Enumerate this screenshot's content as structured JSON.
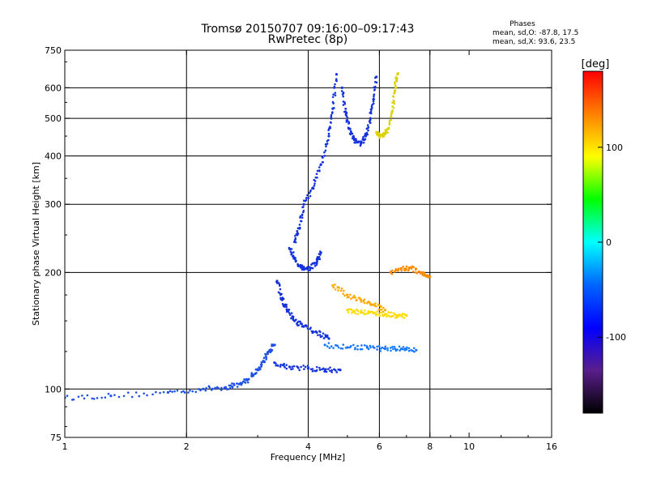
{
  "chart_data": {
    "type": "scatter",
    "title": "Tromsø 20150707 09:16:00–09:17:43",
    "subtitle": "RwPretec (8p)",
    "info": {
      "heading": "Phases",
      "line1": "mean, sd,O: -87.8, 17.5",
      "line2": "mean, sd,X:  93.6, 23.5"
    },
    "xlabel": "Frequency [MHz]",
    "ylabel": "Stationary phase Virtual Height [km]",
    "x_scale": "log",
    "y_scale": "log",
    "xlim": [
      1,
      16
    ],
    "ylim": [
      75,
      750
    ],
    "x_ticks": [
      1,
      2,
      4,
      6,
      8,
      10,
      16
    ],
    "x_tick_labels": [
      "1",
      "2",
      "4",
      "6",
      "8",
      "10",
      "16"
    ],
    "x_gridlines": [
      2,
      4,
      6,
      8
    ],
    "y_ticks": [
      75,
      100,
      200,
      300,
      400,
      500,
      600,
      750
    ],
    "y_tick_labels": [
      "75",
      "100",
      "200",
      "300",
      "400",
      "500",
      "600",
      "750"
    ],
    "y_gridlines": [
      100,
      200,
      300,
      400,
      500,
      600
    ],
    "grid": true,
    "colorbar": {
      "unit": "[deg]",
      "range": [
        -180,
        180
      ],
      "ticks": [
        100,
        0,
        -100
      ],
      "tick_labels": [
        "100",
        "0",
        "-100"
      ],
      "stops": [
        "#000000",
        "#5a1e8c",
        "#0000ff",
        "#0064ff",
        "#00ffff",
        "#00ff00",
        "#ffff00",
        "#ff8000",
        "#ff0000"
      ]
    },
    "series": [
      {
        "name": "",
        "color": "#1e50e6",
        "f": [
          1.0,
          1.3,
          1.8,
          2.2,
          2.5,
          2.7,
          2.85
        ],
        "h": [
          95,
          96,
          98,
          100,
          101,
          103,
          106
        ]
      },
      {
        "name": "",
        "color": "#1e50e6",
        "f": [
          2.9,
          3.0,
          3.1,
          3.2,
          3.3
        ],
        "h": [
          108,
          112,
          118,
          125,
          130
        ]
      },
      {
        "name": "",
        "color": "#1432dc",
        "f": [
          3.3,
          3.6,
          4.0,
          4.4,
          4.8
        ],
        "h": [
          117,
          114,
          113,
          112,
          112
        ]
      },
      {
        "name": "",
        "color": "#1432dc",
        "f": [
          3.6,
          3.7,
          3.8,
          3.9,
          4.05,
          4.2,
          4.3
        ],
        "h": [
          230,
          218,
          208,
          205,
          205,
          212,
          225
        ]
      },
      {
        "name": "",
        "color": "#1432dc",
        "f": [
          3.7,
          3.8,
          3.9,
          4.1,
          4.3,
          4.5,
          4.6,
          4.7
        ],
        "h": [
          240,
          260,
          300,
          330,
          380,
          450,
          530,
          650
        ]
      },
      {
        "name": "",
        "color": "#1432dc",
        "f": [
          4.85,
          4.95,
          5.05,
          5.2,
          5.4,
          5.55,
          5.7,
          5.8,
          5.9
        ],
        "h": [
          600,
          520,
          470,
          440,
          430,
          450,
          500,
          560,
          640
        ]
      },
      {
        "name": "",
        "color": "#dcd200",
        "f": [
          5.9,
          6.0,
          6.15,
          6.3,
          6.45,
          6.55,
          6.65
        ],
        "h": [
          460,
          450,
          455,
          470,
          520,
          590,
          650
        ]
      },
      {
        "name": "",
        "color": "#1432dc",
        "f": [
          3.35,
          3.45,
          3.55,
          3.7,
          3.9,
          4.2,
          4.5
        ],
        "h": [
          190,
          170,
          160,
          150,
          145,
          140,
          135
        ]
      },
      {
        "name": "",
        "color": "#ffaa00",
        "f": [
          4.6,
          5.0,
          5.4,
          5.8,
          6.2
        ],
        "h": [
          185,
          175,
          170,
          165,
          160
        ]
      },
      {
        "name": "",
        "color": "#ffdc00",
        "f": [
          5.0,
          5.4,
          5.8,
          6.2,
          6.6,
          7.0
        ],
        "h": [
          160,
          158,
          157,
          156,
          155,
          155
        ]
      },
      {
        "name": "",
        "color": "#1478ff",
        "f": [
          4.4,
          5.0,
          5.6,
          6.2,
          6.8,
          7.4
        ],
        "h": [
          130,
          128,
          128,
          127,
          127,
          126
        ]
      },
      {
        "name": "",
        "color": "#ff8c00",
        "f": [
          6.4,
          6.8,
          7.2,
          7.6,
          8.0
        ],
        "h": [
          200,
          205,
          205,
          200,
          195
        ]
      }
    ]
  }
}
